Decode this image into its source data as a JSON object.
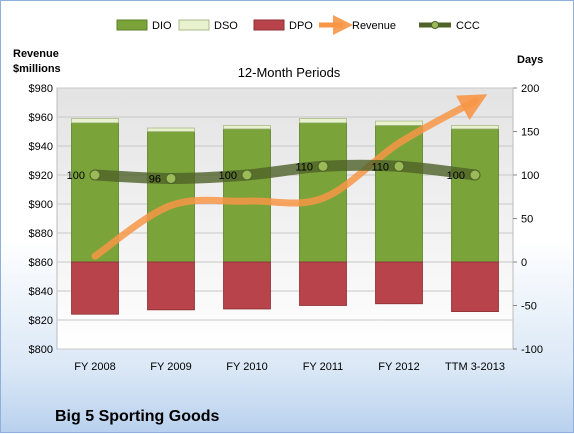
{
  "chart_data": {
    "type": "bar",
    "title": "12-Month Periods",
    "company": "Big 5 Sporting Goods",
    "left_axis": {
      "title_line1": "Revenue",
      "title_line2": "$millions",
      "min": 800,
      "max": 980,
      "step": 20,
      "prefix": "$"
    },
    "right_axis": {
      "title": "Days",
      "min": -100,
      "max": 200,
      "step": 50
    },
    "categories": [
      "FY 2008",
      "FY 2009",
      "FY 2010",
      "FY 2011",
      "FY 2012",
      "TTM 3-2013"
    ],
    "series": [
      {
        "name": "DIO",
        "color": "#7aa43a",
        "axis": "right",
        "values": [
          160,
          150,
          153,
          160,
          157,
          153
        ]
      },
      {
        "name": "DSO",
        "color": "#e9f2cf",
        "axis": "right",
        "values": [
          5,
          4,
          4,
          5,
          5,
          4
        ]
      },
      {
        "name": "DPO",
        "color": "#b8434a",
        "axis": "right",
        "values": [
          -60,
          -55,
          -54,
          -50,
          -48,
          -57
        ]
      },
      {
        "name": "Revenue",
        "color": "#f79646",
        "axis": "left",
        "values": [
          864,
          899,
          902,
          904,
          942,
          971
        ]
      },
      {
        "name": "CCC",
        "color": "#4f6228",
        "axis": "right",
        "values": [
          100,
          96,
          100,
          110,
          110,
          100
        ],
        "labels": [
          "100",
          "96",
          "100",
          "110",
          "110",
          "100"
        ]
      }
    ],
    "grid": true,
    "legend": "top"
  }
}
